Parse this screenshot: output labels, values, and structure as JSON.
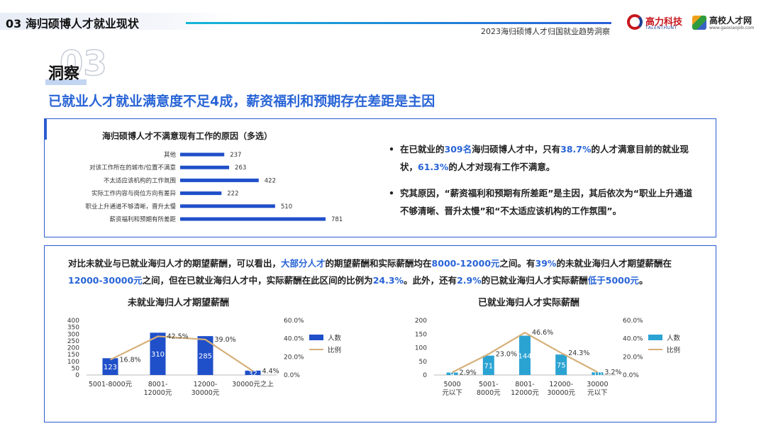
{
  "header": {
    "section_title": "03 海归硕博人才就业现状",
    "report_subtitle": "2023海归硕博人才归国就业趋势洞察",
    "logo1_name": "高力科技",
    "logo1_sub": "TALENTHUNT",
    "logo2_name": "高校人才网",
    "logo2_sub": "www.gaoxiaojob.com"
  },
  "insight": {
    "number": "03",
    "label": "洞察",
    "headline": "已就业人才就业满意度不足4成，薪资福利和预期存在差距是主因"
  },
  "bullets": [
    {
      "parts": [
        {
          "t": "在已就业的",
          "hl": false
        },
        {
          "t": "309名",
          "hl": true
        },
        {
          "t": "海归硕博人才中，只有",
          "hl": false
        },
        {
          "t": "38.7%",
          "hl": true
        },
        {
          "t": "的人才满意目前的就业现状，",
          "hl": false
        },
        {
          "t": "61.3%",
          "hl": true
        },
        {
          "t": "的人才对现有工作不满意。",
          "hl": false
        }
      ]
    },
    {
      "parts": [
        {
          "t": "究其原因，“薪资福利和预期有所差距”是主因，其后依次为“职业上升通道不够清晰、晋升太慢”和“不太适应该机构的工作氛围”。",
          "hl": false
        }
      ]
    }
  ],
  "summary": {
    "parts": [
      {
        "t": "对比未就业与已就业海归人才的期望薪酬，可以看出，",
        "hl": false
      },
      {
        "t": "大部分人才",
        "hl": true
      },
      {
        "t": "的期望薪酬和实际薪酬均在",
        "hl": false
      },
      {
        "t": "8000-12000元",
        "hl": true
      },
      {
        "t": "之间。有",
        "hl": false
      },
      {
        "t": "39%",
        "hl": true
      },
      {
        "t": "的未就业海归人才期望薪酬在",
        "hl": false
      },
      {
        "t": "12000-30000元",
        "hl": true
      },
      {
        "t": "之间，但在已就业海归人才中，实际薪酬在此区间的比例为",
        "hl": false
      },
      {
        "t": "24.3%",
        "hl": true
      },
      {
        "t": "。此外，还有",
        "hl": false
      },
      {
        "t": "2.9%",
        "hl": true
      },
      {
        "t": "的已就业海归人才实际薪酬",
        "hl": false
      },
      {
        "t": "低于5000元",
        "hl": true
      },
      {
        "t": "。",
        "hl": false
      }
    ]
  },
  "colors": {
    "primary": "#2c5ccf",
    "highlight": "#2864d6",
    "bar_dark": "#1f4fc9",
    "bar_cyan": "#2aa3d3",
    "line_tan": "#d6b07a"
  },
  "chart_data": [
    {
      "type": "bar",
      "orientation": "horizontal",
      "title": "海归硕博人才不满意现有工作的原因（多选）",
      "categories": [
        "其他",
        "对该工作所在的城市/位置不满意",
        "不太适应该机构的工作氛围",
        "实际工作内容与岗位方向有差异",
        "职业上升通道不够清晰，晋升太慢",
        "薪资福利和预期有所差距"
      ],
      "values": [
        237,
        263,
        422,
        222,
        510,
        781
      ],
      "xlim": [
        0,
        800
      ],
      "data_labels": true,
      "grid": false
    },
    {
      "type": "bar",
      "combo": "bar+line",
      "title": "未就业海归人才期望薪酬",
      "categories": [
        "5001-8000元",
        "8001-12000元",
        "12000-30000元",
        "30000元之上"
      ],
      "series": [
        {
          "name": "人数",
          "type": "bar",
          "axis": "left",
          "values": [
            123,
            310,
            285,
            32
          ]
        },
        {
          "name": "比例",
          "type": "line",
          "axis": "right",
          "values": [
            16.8,
            42.5,
            39.0,
            4.4
          ]
        }
      ],
      "ylim_left": [
        0,
        400
      ],
      "yticks_left": [
        0,
        50,
        100,
        150,
        200,
        250,
        300,
        350,
        400
      ],
      "ylim_right": [
        0,
        60
      ],
      "yticks_right": [
        "0.0%",
        "20.0%",
        "40.0%",
        "60.0%"
      ],
      "legend": "right"
    },
    {
      "type": "bar",
      "combo": "bar+line",
      "title": "已就业海归人才实际薪酬",
      "categories": [
        "5000元以下",
        "5001-8000元",
        "8001-12000元",
        "12000-30000元",
        "30000元以下"
      ],
      "series": [
        {
          "name": "人数",
          "type": "bar",
          "axis": "left",
          "values": [
            9,
            71,
            144,
            75,
            10
          ]
        },
        {
          "name": "比例",
          "type": "line",
          "axis": "right",
          "values": [
            2.9,
            23.0,
            46.6,
            24.3,
            3.2
          ]
        }
      ],
      "ylim_left": [
        0,
        200
      ],
      "yticks_left": [
        0,
        50,
        100,
        150,
        200
      ],
      "ylim_right": [
        0,
        60
      ],
      "yticks_right": [
        "0.0%",
        "20.0%",
        "40.0%",
        "60.0%"
      ],
      "legend": "right"
    }
  ]
}
